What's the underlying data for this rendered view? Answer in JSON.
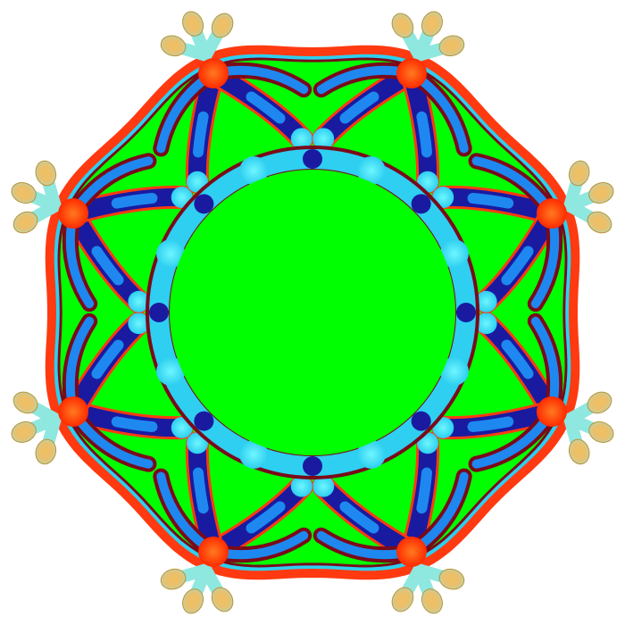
{
  "image": {
    "kind": "symmetric-fractal-rosette",
    "symmetry_order": 8,
    "background_color": "#ffffff",
    "fill_color": "#00ff00",
    "palette": [
      "#00ff00",
      "#2ee8ff",
      "#1e88f0",
      "#1a1aa0",
      "#7a0a1a",
      "#ff2a00",
      "#ff7a20",
      "#f2c060",
      "#b8f0d8"
    ]
  }
}
